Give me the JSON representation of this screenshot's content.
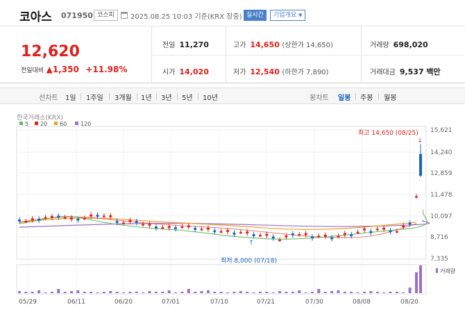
{
  "header": {
    "name": "코아스",
    "code": "071950",
    "market": "코스피",
    "datetime": "2025.08.25 10:03 기준(KRX 장중)",
    "realtime": "실시간",
    "corp_info": "기업개요"
  },
  "quote": {
    "price": "12,620",
    "change_label": "전일대비",
    "change": "▲1,350",
    "change_pct": "+11.98%",
    "prev_close_label": "전일",
    "prev_close": "11,270",
    "high_label": "고가",
    "high": "14,650",
    "high_sub": "(상한가 14,650)",
    "volume_label": "거래량",
    "volume": "698,020",
    "open_label": "시가",
    "open": "14,020",
    "low_label": "저가",
    "low": "12,540",
    "low_sub": "(하한가 7,890)",
    "amount_label": "거래대금",
    "amount": "9,537 백만"
  },
  "toolbar": {
    "line_label": "선차트",
    "ranges": [
      "1일",
      "1주일",
      "3개월",
      "1년",
      "3년",
      "5년",
      "10년"
    ],
    "candle_label": "봉차트",
    "candles": [
      "일봉",
      "주봉",
      "월봉"
    ],
    "selected_candle": "일봉"
  },
  "chart_data": {
    "type": "candlestick",
    "source_label": "한국거래소(KRX)",
    "legend": [
      {
        "name": "5",
        "color": "#5cb85c"
      },
      {
        "name": "20",
        "color": "#e0201b"
      },
      {
        "name": "60",
        "color": "#f0a030"
      },
      {
        "name": "120",
        "color": "#9b6fc6"
      }
    ],
    "y_ticks": [
      "15,621",
      "14,240",
      "12,859",
      "11,478",
      "10,097",
      "8,716",
      "7,335"
    ],
    "ylim": [
      7335,
      15621
    ],
    "x_ticks": [
      "05/29",
      "06/11",
      "06/20",
      "07/01",
      "07/10",
      "07/21",
      "07/30",
      "08/08",
      "08/20"
    ],
    "high_annotation": "최고 14,650 (08/25)",
    "low_annotation": "최저 8,000 (07/18)",
    "volume_label": "거래량",
    "colors": {
      "up": "#e0201b",
      "down": "#1565c0",
      "volume": "#9b6fc6"
    }
  }
}
